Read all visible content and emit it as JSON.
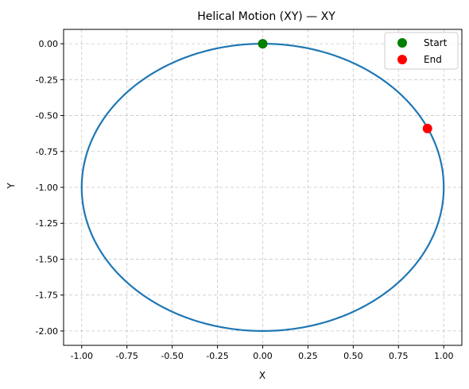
{
  "chart_data": {
    "type": "line",
    "title": "Helical Motion (XY) — XY",
    "xlabel": "X",
    "ylabel": "Y",
    "xlim": [
      -1.1,
      1.1
    ],
    "ylim": [
      -2.1,
      0.1
    ],
    "xticks": [
      "-1.00",
      "-0.75",
      "-0.50",
      "-0.25",
      "0.00",
      "0.25",
      "0.50",
      "0.75",
      "1.00"
    ],
    "yticks": [
      "0.00",
      "-0.25",
      "-0.50",
      "-0.75",
      "-1.00",
      "-1.25",
      "-1.50",
      "-1.75",
      "-2.00"
    ],
    "grid": true,
    "legend_position": "top-right",
    "series": [
      {
        "color": "#1f77b4",
        "shape": "circle",
        "center": [
          0,
          -1
        ],
        "radius": 1
      }
    ],
    "markers": [
      {
        "name": "Start",
        "x": 0.0,
        "y": 0.0,
        "color": "#008000"
      },
      {
        "name": "End",
        "x": 0.91,
        "y": -0.59,
        "color": "#ff0000"
      }
    ]
  }
}
